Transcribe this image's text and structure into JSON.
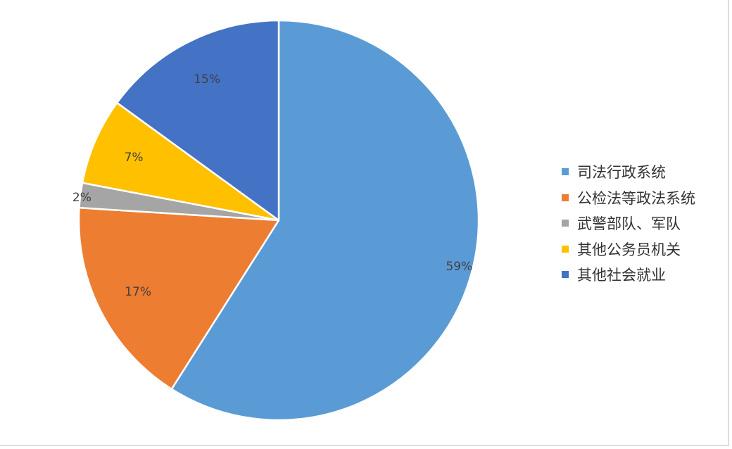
{
  "chart_data": {
    "type": "pie",
    "categories": [
      "司法行政系统",
      "公检法等政法系统",
      "武警部队、军队",
      "其他公务员机关",
      "其他社会就业"
    ],
    "values": [
      59,
      17,
      2,
      7,
      15
    ],
    "data_labels": [
      "59%",
      "17%",
      "2%",
      "7%",
      "15%"
    ],
    "colors": [
      "#5b9bd5",
      "#ed7d31",
      "#a5a5a5",
      "#ffc000",
      "#4472c4"
    ],
    "start_angle": "12 o'clock, clockwise",
    "legend": "right"
  }
}
